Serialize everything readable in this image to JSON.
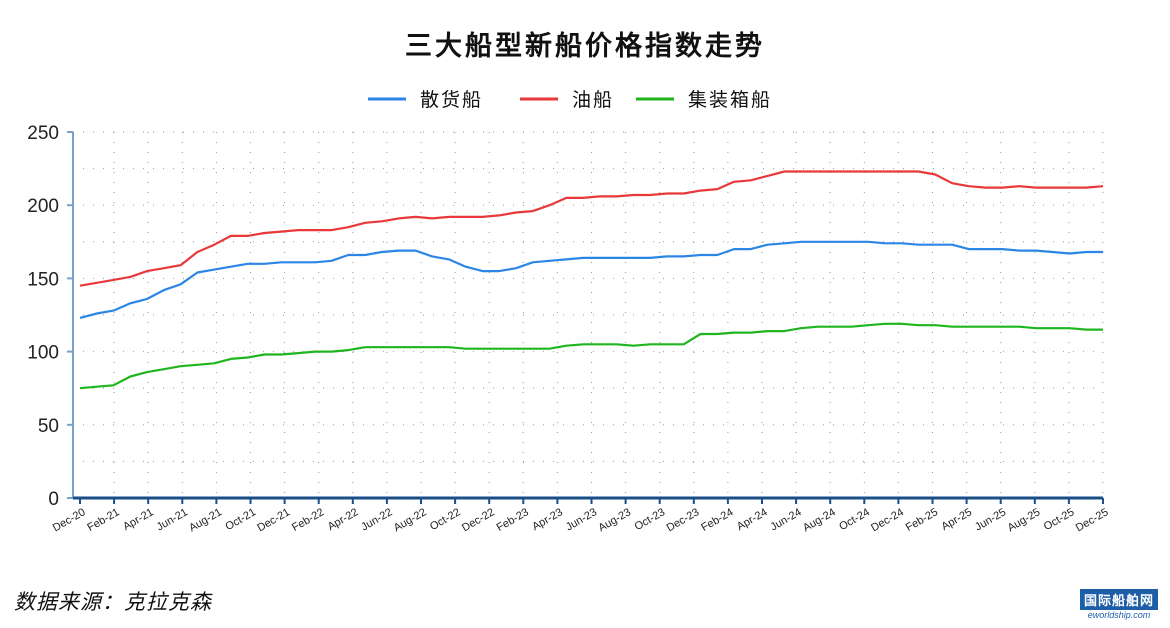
{
  "chart_data": {
    "type": "line",
    "title": "三大船型新船价格指数走势",
    "ylim": [
      0,
      250
    ],
    "yticks": [
      0,
      50,
      100,
      150,
      200,
      250
    ],
    "grid": "dotted",
    "legend_position": "top-center",
    "x_labels": [
      "Dec-20",
      "Feb-21",
      "Apr-21",
      "Jun-21",
      "Aug-21",
      "Oct-21",
      "Dec-21",
      "Feb-22",
      "Apr-22",
      "Jun-22",
      "Aug-22",
      "Oct-22",
      "Dec-22",
      "Feb-23",
      "Apr-23",
      "Jun-23",
      "Aug-23",
      "Oct-23",
      "Dec-23",
      "Feb-24",
      "Apr-24",
      "Jun-24",
      "Aug-24",
      "Oct-24",
      "Dec-24",
      "Feb-25",
      "Apr-25",
      "Jun-25",
      "Aug-25",
      "Oct-25",
      "Dec-25"
    ],
    "series": [
      {
        "name": "散货船",
        "color": "#2b86e6",
        "values": [
          123,
          126,
          128,
          133,
          136,
          142,
          146,
          154,
          156,
          158,
          160,
          160,
          161,
          161,
          161,
          162,
          166,
          166,
          168,
          169,
          169,
          165,
          163,
          158,
          155,
          155,
          157,
          161,
          162,
          163,
          164,
          164,
          164,
          164,
          164,
          165,
          165,
          166,
          166,
          170,
          170,
          173,
          174,
          175,
          175,
          175,
          175,
          175,
          174,
          174,
          173,
          173,
          173,
          170,
          170,
          170,
          169,
          169,
          168,
          167,
          168,
          168
        ]
      },
      {
        "name": "油船",
        "color": "#e8383a",
        "values": [
          145,
          147,
          149,
          151,
          155,
          157,
          159,
          168,
          173,
          179,
          179,
          181,
          182,
          183,
          183,
          183,
          185,
          188,
          189,
          191,
          192,
          191,
          192,
          192,
          192,
          193,
          195,
          196,
          200,
          205,
          205,
          206,
          206,
          207,
          207,
          208,
          208,
          210,
          211,
          216,
          217,
          220,
          223,
          223,
          223,
          223,
          223,
          223,
          223,
          223,
          223,
          221,
          215,
          213,
          212,
          212,
          213,
          212,
          212,
          212,
          212,
          213
        ]
      },
      {
        "name": "集装箱船",
        "color": "#1fb51f",
        "values": [
          75,
          76,
          77,
          83,
          86,
          88,
          90,
          91,
          92,
          95,
          96,
          98,
          98,
          99,
          100,
          100,
          101,
          103,
          103,
          103,
          103,
          103,
          103,
          102,
          102,
          102,
          102,
          102,
          102,
          104,
          105,
          105,
          105,
          104,
          105,
          105,
          105,
          112,
          112,
          113,
          113,
          114,
          114,
          116,
          117,
          117,
          117,
          118,
          119,
          119,
          118,
          118,
          117,
          117,
          117,
          117,
          117,
          116,
          116,
          116,
          115,
          115
        ]
      }
    ]
  },
  "source_text": "数据来源：克拉克森",
  "logo": {
    "main": "国际船舶网",
    "sub": "eworldship.com"
  }
}
